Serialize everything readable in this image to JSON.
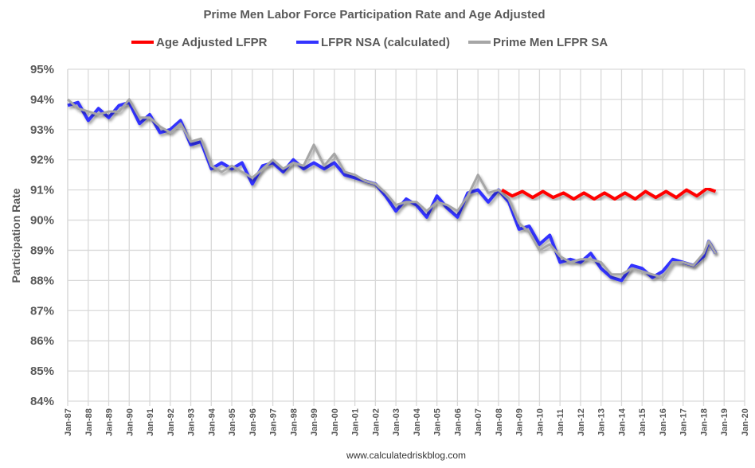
{
  "chart_data": {
    "type": "line",
    "title": "Prime Men Labor Force Participation Rate and Age Adjusted",
    "xlabel": "",
    "ylabel": "Participation Rate",
    "ylim": [
      84,
      95
    ],
    "yticks": [
      "84%",
      "85%",
      "86%",
      "87%",
      "88%",
      "89%",
      "90%",
      "91%",
      "92%",
      "93%",
      "94%",
      "95%"
    ],
    "xticks": [
      "Jan-87",
      "Jan-88",
      "Jan-89",
      "Jan-90",
      "Jan-91",
      "Jan-92",
      "Jan-93",
      "Jan-94",
      "Jan-95",
      "Jan-96",
      "Jan-97",
      "Jan-98",
      "Jan-99",
      "Jan-00",
      "Jan-01",
      "Jan-02",
      "Jan-03",
      "Jan-04",
      "Jan-05",
      "Jan-06",
      "Jan-07",
      "Jan-08",
      "Jan-09",
      "Jan-10",
      "Jan-11",
      "Jan-12",
      "Jan-13",
      "Jan-14",
      "Jan-15",
      "Jan-16",
      "Jan-17",
      "Jan-18",
      "Jan-19",
      "Jan-20"
    ],
    "xlim": [
      "1987-01",
      "2020-01"
    ],
    "grid": true,
    "legend": "top",
    "series": [
      {
        "name": "Age Adjusted LFPR",
        "color": "#ff0000",
        "x": [
          "2008-03",
          "2008-09",
          "2009-03",
          "2009-09",
          "2010-03",
          "2010-09",
          "2011-03",
          "2011-09",
          "2012-03",
          "2012-09",
          "2013-03",
          "2013-09",
          "2014-03",
          "2014-09",
          "2015-03",
          "2015-09",
          "2016-03",
          "2016-09",
          "2017-03",
          "2017-09",
          "2018-03",
          "2018-08"
        ],
        "y": [
          91.0,
          90.8,
          90.95,
          90.75,
          90.95,
          90.75,
          90.9,
          90.7,
          90.9,
          90.7,
          90.9,
          90.7,
          90.9,
          90.7,
          90.95,
          90.75,
          90.95,
          90.75,
          91.0,
          90.8,
          91.05,
          90.95
        ]
      },
      {
        "name": "LFPR NSA (calculated)",
        "color": "#3333ff",
        "x": [
          "1987-01",
          "1987-07",
          "1988-01",
          "1988-07",
          "1989-01",
          "1989-07",
          "1990-01",
          "1990-07",
          "1991-01",
          "1991-07",
          "1992-01",
          "1992-07",
          "1993-01",
          "1993-07",
          "1994-01",
          "1994-07",
          "1995-01",
          "1995-07",
          "1996-01",
          "1996-07",
          "1997-01",
          "1997-07",
          "1998-01",
          "1998-07",
          "1999-01",
          "1999-07",
          "2000-01",
          "2000-07",
          "2001-01",
          "2001-07",
          "2002-01",
          "2002-07",
          "2003-01",
          "2003-07",
          "2004-01",
          "2004-07",
          "2005-01",
          "2005-07",
          "2006-01",
          "2006-07",
          "2007-01",
          "2007-07",
          "2008-01",
          "2008-07",
          "2009-01",
          "2009-07",
          "2010-01",
          "2010-07",
          "2011-01",
          "2011-07",
          "2012-01",
          "2012-07",
          "2013-01",
          "2013-07",
          "2014-01",
          "2014-07",
          "2015-01",
          "2015-07",
          "2016-01",
          "2016-07",
          "2017-01",
          "2017-07",
          "2018-01",
          "2018-04",
          "2018-08"
        ],
        "y": [
          93.8,
          93.9,
          93.3,
          93.7,
          93.4,
          93.8,
          93.9,
          93.2,
          93.5,
          92.9,
          93.0,
          93.3,
          92.5,
          92.6,
          91.7,
          91.9,
          91.7,
          91.9,
          91.2,
          91.8,
          91.9,
          91.6,
          92.0,
          91.7,
          91.9,
          91.7,
          91.9,
          91.5,
          91.4,
          91.3,
          91.2,
          90.8,
          90.3,
          90.7,
          90.5,
          90.1,
          90.8,
          90.4,
          90.1,
          90.9,
          91.0,
          90.6,
          91.0,
          90.6,
          89.7,
          89.8,
          89.2,
          89.5,
          88.6,
          88.7,
          88.6,
          88.9,
          88.4,
          88.1,
          88.0,
          88.5,
          88.4,
          88.1,
          88.3,
          88.7,
          88.6,
          88.5,
          88.8,
          89.3,
          88.9
        ]
      },
      {
        "name": "Prime Men LFPR SA",
        "color": "#a6a6a6",
        "x": [
          "1987-01",
          "1987-07",
          "1988-01",
          "1988-07",
          "1989-01",
          "1989-07",
          "1990-01",
          "1990-07",
          "1991-01",
          "1991-07",
          "1992-01",
          "1992-07",
          "1993-01",
          "1993-07",
          "1994-01",
          "1994-07",
          "1995-01",
          "1995-07",
          "1996-01",
          "1996-07",
          "1997-01",
          "1997-07",
          "1998-01",
          "1998-07",
          "1999-01",
          "1999-07",
          "2000-01",
          "2000-07",
          "2001-01",
          "2001-07",
          "2002-01",
          "2002-07",
          "2003-01",
          "2003-07",
          "2004-01",
          "2004-07",
          "2005-01",
          "2005-07",
          "2006-01",
          "2006-07",
          "2007-01",
          "2007-07",
          "2008-01",
          "2008-07",
          "2009-01",
          "2009-07",
          "2010-01",
          "2010-07",
          "2011-01",
          "2011-07",
          "2012-01",
          "2012-07",
          "2013-01",
          "2013-07",
          "2014-01",
          "2014-07",
          "2015-01",
          "2015-07",
          "2016-01",
          "2016-07",
          "2017-01",
          "2017-07",
          "2018-01",
          "2018-04",
          "2018-08"
        ],
        "y": [
          94.0,
          93.7,
          93.6,
          93.5,
          93.6,
          93.6,
          94.0,
          93.4,
          93.4,
          93.1,
          92.9,
          93.2,
          92.6,
          92.7,
          91.8,
          91.6,
          91.8,
          91.6,
          91.4,
          91.7,
          92.0,
          91.7,
          91.9,
          91.8,
          92.5,
          91.8,
          92.2,
          91.6,
          91.5,
          91.3,
          91.2,
          90.9,
          90.5,
          90.6,
          90.6,
          90.3,
          90.6,
          90.5,
          90.3,
          90.8,
          91.5,
          90.9,
          91.0,
          90.7,
          89.9,
          89.6,
          89.0,
          89.2,
          88.8,
          88.6,
          88.7,
          88.7,
          88.6,
          88.2,
          88.2,
          88.4,
          88.3,
          88.2,
          88.1,
          88.6,
          88.6,
          88.5,
          88.9,
          89.3,
          88.9
        ]
      }
    ]
  },
  "footer": "www.calculatedriskblog.com"
}
